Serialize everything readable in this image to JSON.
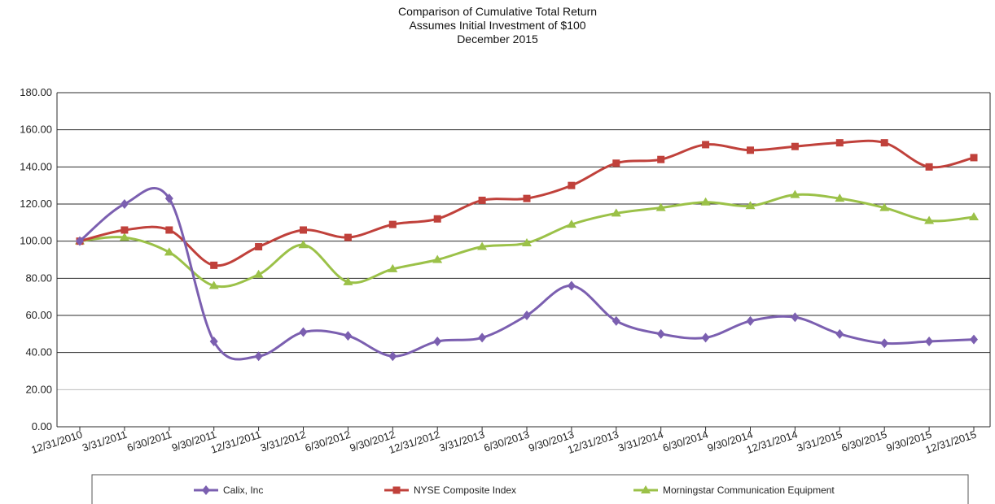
{
  "chart_data": {
    "type": "line",
    "title": "Comparison of Cumulative Total Return",
    "subtitle_1": "Assumes Initial Investment of $100",
    "subtitle_2": "December 2015",
    "categories": [
      "12/31/2010",
      "3/31/2011",
      "6/30/2011",
      "9/30/2011",
      "12/31/2011",
      "3/31/2012",
      "6/30/2012",
      "9/30/2012",
      "12/31/2012",
      "3/31/2013",
      "6/30/2013",
      "9/30/2013",
      "12/31/2013",
      "3/31/2014",
      "6/30/2014",
      "9/30/2014",
      "12/31/2014",
      "3/31/2015",
      "6/30/2015",
      "9/30/2015",
      "12/31/2015"
    ],
    "y_ticks": [
      "0.00",
      "20.00",
      "40.00",
      "60.00",
      "80.00",
      "100.00",
      "120.00",
      "140.00",
      "160.00",
      "180.00"
    ],
    "ylim": [
      0,
      180
    ],
    "grid": true,
    "legend_position": "bottom",
    "series": [
      {
        "name": "Calix, Inc",
        "color": "#7b5fb0",
        "marker": "diamond",
        "values": [
          100,
          120,
          123,
          46,
          38,
          51,
          49,
          38,
          46,
          48,
          60,
          76,
          57,
          50,
          48,
          57,
          59,
          50,
          45,
          46,
          47
        ]
      },
      {
        "name": "NYSE Composite Index",
        "color": "#c0413b",
        "marker": "square",
        "values": [
          100,
          106,
          106,
          87,
          97,
          106,
          102,
          109,
          112,
          122,
          123,
          130,
          142,
          144,
          152,
          149,
          151,
          153,
          153,
          140,
          145
        ]
      },
      {
        "name": "Morningstar Communication Equipment",
        "color": "#9bc148",
        "marker": "triangle",
        "values": [
          100,
          102,
          94,
          76,
          82,
          98,
          78,
          85,
          90,
          97,
          99,
          109,
          115,
          118,
          121,
          119,
          125,
          123,
          118,
          111,
          113
        ]
      }
    ]
  }
}
